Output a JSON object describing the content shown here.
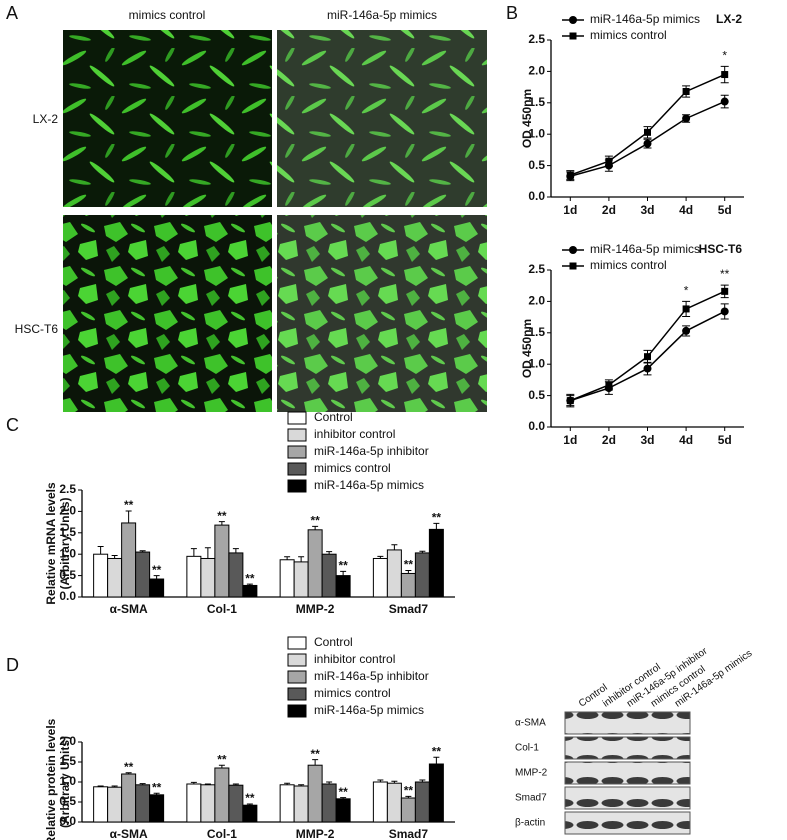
{
  "panel_labels": [
    "A",
    "B",
    "C",
    "D"
  ],
  "panel_a": {
    "columns": [
      "mimics control",
      "miR-146a-5p mimics"
    ],
    "rows": [
      "LX-2",
      "HSC-T6"
    ]
  },
  "blot": {
    "columns": [
      "Control",
      "inhibitor control",
      "miR-146a-5p inhibitor",
      "mimics control",
      "miR-146a-5p mimics"
    ],
    "rows": [
      "α-SMA",
      "Col-1",
      "MMP-2",
      "Smad7",
      "β-actin"
    ]
  },
  "chart_data": [
    {
      "type": "line",
      "title": "LX-2",
      "ylabel": [
        "OD 450nm"
      ],
      "categories": [
        "1d",
        "2d",
        "3d",
        "4d",
        "5d"
      ],
      "ylim": [
        0,
        2.5
      ],
      "yticks": [
        {
          "value": 0,
          "label": "0.0"
        },
        0.5,
        {
          "value": 1,
          "label": "1.0"
        },
        1.5,
        {
          "value": 2,
          "label": "2.0"
        },
        2.5
      ],
      "series": [
        {
          "name": "miR-146a-5p mimics",
          "color": "#000000",
          "marker": "circle",
          "values": [
            0.33,
            0.5,
            0.85,
            1.25,
            1.52
          ],
          "errors": [
            0.07,
            0.09,
            0.07,
            0.06,
            0.1
          ]
        },
        {
          "name": "mimics control",
          "color": "#000000",
          "marker": "square",
          "values": [
            0.35,
            0.57,
            1.03,
            1.68,
            1.95
          ],
          "errors": [
            0.07,
            0.08,
            0.09,
            0.09,
            0.13
          ]
        }
      ],
      "annotations": [
        {
          "text": "*",
          "x": "5d"
        }
      ]
    },
    {
      "type": "line",
      "title": "HSC-T6",
      "ylabel": [
        "OD 450nm"
      ],
      "categories": [
        "1d",
        "2d",
        "3d",
        "4d",
        "5d"
      ],
      "ylim": [
        0,
        2.5
      ],
      "yticks": [
        {
          "value": 0,
          "label": "0.0"
        },
        0.5,
        {
          "value": 1,
          "label": "1.0"
        },
        1.5,
        {
          "value": 2,
          "label": "2.0"
        },
        2.5
      ],
      "series": [
        {
          "name": "miR-146a-5p mimics",
          "color": "#000000",
          "marker": "circle",
          "values": [
            0.42,
            0.62,
            0.93,
            1.53,
            1.84
          ],
          "errors": [
            0.1,
            0.1,
            0.1,
            0.08,
            0.12
          ]
        },
        {
          "name": "mimics control",
          "color": "#000000",
          "marker": "square",
          "values": [
            0.42,
            0.67,
            1.12,
            1.88,
            2.16
          ],
          "errors": [
            0.08,
            0.08,
            0.1,
            0.12,
            0.1
          ]
        }
      ],
      "annotations": [
        {
          "text": "*",
          "x": "4d"
        },
        {
          "text": "**",
          "x": "5d"
        }
      ]
    },
    {
      "type": "bar",
      "ylabel": [
        "Relative mRNA levels",
        "(Arbitrary Units)"
      ],
      "categories": [
        "α-SMA",
        "Col-1",
        "MMP-2",
        "Smad7"
      ],
      "ylim": [
        0,
        2.5
      ],
      "yticks": [
        {
          "value": 0,
          "label": "0.0"
        },
        0.5,
        {
          "value": 1,
          "label": "1.0"
        },
        1.5,
        {
          "value": 2,
          "label": "2.0"
        },
        2.5
      ],
      "series": [
        {
          "name": "Control",
          "color": "#ffffff",
          "values": [
            1.0,
            0.95,
            0.87,
            0.9
          ],
          "errors": [
            0.18,
            0.18,
            0.07,
            0.05
          ]
        },
        {
          "name": "inhibitor control",
          "color": "#d9d9d9",
          "values": [
            0.9,
            0.9,
            0.82,
            1.1
          ],
          "errors": [
            0.07,
            0.25,
            0.12,
            0.12
          ]
        },
        {
          "name": "miR-146a-5p inhibitor",
          "color": "#a6a6a6",
          "values": [
            1.73,
            1.68,
            1.57,
            0.55
          ],
          "errors": [
            0.28,
            0.08,
            0.08,
            0.07
          ],
          "significance": [
            "**",
            "**",
            "**",
            "**"
          ]
        },
        {
          "name": "mimics control",
          "color": "#595959",
          "values": [
            1.05,
            1.03,
            1.0,
            1.03
          ],
          "errors": [
            0.03,
            0.1,
            0.06,
            0.04
          ]
        },
        {
          "name": "miR-146a-5p mimics",
          "color": "#000000",
          "values": [
            0.42,
            0.27,
            0.5,
            1.58
          ],
          "errors": [
            0.08,
            0.03,
            0.1,
            0.14
          ],
          "significance": [
            "**",
            "**",
            "**",
            "**"
          ]
        }
      ]
    },
    {
      "type": "bar",
      "ylabel": [
        "Relative protein levels",
        "(Arbitrary Units)"
      ],
      "categories": [
        "α-SMA",
        "Col-1",
        "MMP-2",
        "Smad7"
      ],
      "ylim": [
        0,
        2
      ],
      "yticks": [
        {
          "value": 0,
          "label": "0.0"
        },
        0.5,
        {
          "value": 1,
          "label": "1.0"
        },
        1.5,
        {
          "value": 2,
          "label": "2.0"
        }
      ],
      "series": [
        {
          "name": "Control",
          "color": "#ffffff",
          "values": [
            0.88,
            0.95,
            0.93,
            1.0
          ],
          "errors": [
            0.02,
            0.04,
            0.04,
            0.05
          ]
        },
        {
          "name": "inhibitor control",
          "color": "#d9d9d9",
          "values": [
            0.87,
            0.93,
            0.9,
            0.97
          ],
          "errors": [
            0.03,
            0.02,
            0.03,
            0.05
          ]
        },
        {
          "name": "miR-146a-5p inhibitor",
          "color": "#a6a6a6",
          "values": [
            1.2,
            1.35,
            1.42,
            0.6
          ],
          "errors": [
            0.03,
            0.07,
            0.14,
            0.04
          ],
          "significance": [
            "**",
            "**",
            "**",
            "**"
          ]
        },
        {
          "name": "mimics control",
          "color": "#595959",
          "values": [
            0.93,
            0.92,
            0.95,
            1.0
          ],
          "errors": [
            0.03,
            0.03,
            0.05,
            0.05
          ]
        },
        {
          "name": "miR-146a-5p mimics",
          "color": "#000000",
          "values": [
            0.68,
            0.42,
            0.58,
            1.45
          ],
          "errors": [
            0.04,
            0.03,
            0.03,
            0.17
          ],
          "significance": [
            "**",
            "**",
            "**",
            "**"
          ]
        }
      ]
    }
  ]
}
